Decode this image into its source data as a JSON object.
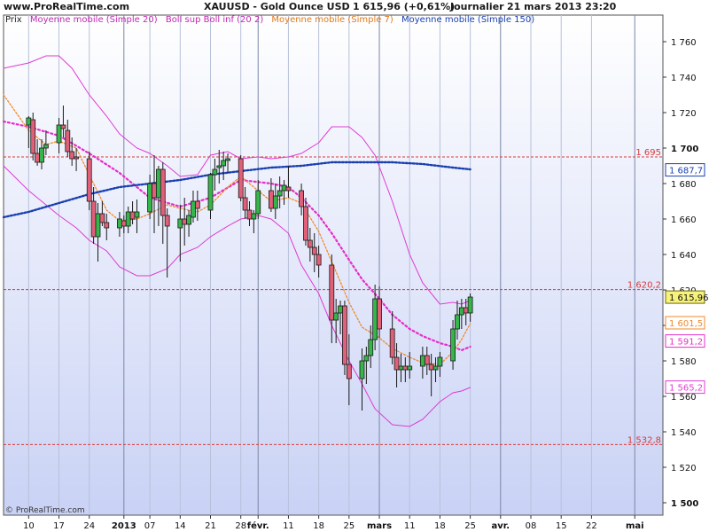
{
  "header": {
    "site": "www.ProRealTime.com",
    "instrument": "XAUUSD - Gold Ounce USD",
    "quote": "1 615,96 (+0,61%)",
    "period": "Journalier",
    "datetime": "21 mars 2013 23:20"
  },
  "legend": {
    "prix": "Prix",
    "sma20": "Moyenne mobile (Simple 20)",
    "boll": "Boll sup Boll inf (20 2)",
    "sma7": "Moyenne mobile (Simple 7)",
    "sma150": "Moyenne mobile (Simple 150)"
  },
  "footer": {
    "copyright": "© ProRealTime.com"
  },
  "colors": {
    "background_top": "#ffffff",
    "background_bottom": "#c9d2f5",
    "up_candle": "#35b54a",
    "down_candle": "#e0607a",
    "sma20": "#e62ec8",
    "bollinger": "#e03ad3",
    "sma7": "#f08a2c",
    "sma150": "#1a3fb0",
    "level_line": "#d83a3a"
  },
  "chart_data": {
    "type": "candlestick",
    "title": "XAUUSD - Gold Ounce USD",
    "y_axis": {
      "ticks": [
        "1 760",
        "1 740",
        "1 720",
        "1 700",
        "1 680",
        "1 660",
        "1 640",
        "1 620",
        "1 600",
        "1 580",
        "1 560",
        "1 540",
        "1 520",
        "1 500"
      ],
      "tick_values": [
        1760,
        1740,
        1720,
        1700,
        1680,
        1660,
        1640,
        1620,
        1600,
        1580,
        1560,
        1540,
        1520,
        1500
      ],
      "range": [
        1493,
        1775
      ],
      "position": "right"
    },
    "x_axis": {
      "labels": [
        "10",
        "17",
        "24",
        "2013",
        "07",
        "14",
        "21",
        "28",
        "févr.",
        "11",
        "18",
        "25",
        "mars",
        "11",
        "18",
        "25",
        "avr.",
        "08",
        "15",
        "22",
        "mai"
      ],
      "label_days": [
        0,
        7,
        14,
        22,
        28,
        35,
        42,
        49,
        53,
        60,
        67,
        74,
        81,
        88,
        95,
        102,
        109,
        116,
        123,
        130,
        140
      ],
      "bold_labels": [
        "2013",
        "févr.",
        "mars",
        "avr.",
        "mai"
      ],
      "range_days": [
        -5.8,
        146.5
      ]
    },
    "ohlc": [
      {
        "d": 0,
        "o": 1713,
        "h": 1718,
        "l": 1700,
        "c": 1717
      },
      {
        "d": 1,
        "o": 1716,
        "h": 1720,
        "l": 1693,
        "c": 1697
      },
      {
        "d": 2,
        "o": 1697,
        "h": 1705,
        "l": 1690,
        "c": 1692
      },
      {
        "d": 3,
        "o": 1692,
        "h": 1705,
        "l": 1688,
        "c": 1700
      },
      {
        "d": 4,
        "o": 1700,
        "h": 1710,
        "l": 1696,
        "c": 1702
      },
      {
        "d": 7,
        "o": 1703,
        "h": 1717,
        "l": 1697,
        "c": 1713
      },
      {
        "d": 8,
        "o": 1713,
        "h": 1724,
        "l": 1706,
        "c": 1711
      },
      {
        "d": 9,
        "o": 1710,
        "h": 1716,
        "l": 1695,
        "c": 1698
      },
      {
        "d": 10,
        "o": 1698,
        "h": 1706,
        "l": 1690,
        "c": 1694
      },
      {
        "d": 11,
        "o": 1695,
        "h": 1700,
        "l": 1687,
        "c": 1694
      },
      {
        "d": 14,
        "o": 1694,
        "h": 1698,
        "l": 1665,
        "c": 1670
      },
      {
        "d": 15,
        "o": 1670,
        "h": 1678,
        "l": 1646,
        "c": 1650
      },
      {
        "d": 16,
        "o": 1650,
        "h": 1669,
        "l": 1636,
        "c": 1663
      },
      {
        "d": 17,
        "o": 1663,
        "h": 1670,
        "l": 1656,
        "c": 1658
      },
      {
        "d": 18,
        "o": 1658,
        "h": 1663,
        "l": 1648,
        "c": 1655
      },
      {
        "d": 21,
        "o": 1655,
        "h": 1664,
        "l": 1650,
        "c": 1660
      },
      {
        "d": 22,
        "o": 1659,
        "h": 1662,
        "l": 1652,
        "c": 1656
      },
      {
        "d": 23,
        "o": 1656,
        "h": 1667,
        "l": 1652,
        "c": 1664
      },
      {
        "d": 24,
        "o": 1664,
        "h": 1670,
        "l": 1657,
        "c": 1660
      },
      {
        "d": 25,
        "o": 1661,
        "h": 1671,
        "l": 1652,
        "c": 1664
      },
      {
        "d": 28,
        "o": 1664,
        "h": 1685,
        "l": 1660,
        "c": 1680
      },
      {
        "d": 29,
        "o": 1680,
        "h": 1696,
        "l": 1652,
        "c": 1672
      },
      {
        "d": 30,
        "o": 1672,
        "h": 1690,
        "l": 1656,
        "c": 1688
      },
      {
        "d": 31,
        "o": 1688,
        "h": 1692,
        "l": 1646,
        "c": 1662
      },
      {
        "d": 32,
        "o": 1662,
        "h": 1666,
        "l": 1627,
        "c": 1656
      },
      {
        "d": 35,
        "o": 1655,
        "h": 1668,
        "l": 1636,
        "c": 1660
      },
      {
        "d": 36,
        "o": 1660,
        "h": 1672,
        "l": 1645,
        "c": 1657
      },
      {
        "d": 37,
        "o": 1657,
        "h": 1665,
        "l": 1650,
        "c": 1662
      },
      {
        "d": 38,
        "o": 1661,
        "h": 1676,
        "l": 1658,
        "c": 1670
      },
      {
        "d": 39,
        "o": 1670,
        "h": 1676,
        "l": 1659,
        "c": 1666
      },
      {
        "d": 42,
        "o": 1665,
        "h": 1686,
        "l": 1660,
        "c": 1685
      },
      {
        "d": 43,
        "o": 1685,
        "h": 1694,
        "l": 1676,
        "c": 1688
      },
      {
        "d": 44,
        "o": 1689,
        "h": 1699,
        "l": 1680,
        "c": 1690
      },
      {
        "d": 45,
        "o": 1690,
        "h": 1698,
        "l": 1682,
        "c": 1693
      },
      {
        "d": 46,
        "o": 1693,
        "h": 1697,
        "l": 1686,
        "c": 1694
      },
      {
        "d": 49,
        "o": 1694,
        "h": 1696,
        "l": 1670,
        "c": 1672
      },
      {
        "d": 50,
        "o": 1672,
        "h": 1678,
        "l": 1660,
        "c": 1665
      },
      {
        "d": 51,
        "o": 1665,
        "h": 1670,
        "l": 1656,
        "c": 1660
      },
      {
        "d": 52,
        "o": 1660,
        "h": 1665,
        "l": 1652,
        "c": 1663
      },
      {
        "d": 53,
        "o": 1663,
        "h": 1682,
        "l": 1660,
        "c": 1676
      },
      {
        "d": 56,
        "o": 1676,
        "h": 1683,
        "l": 1664,
        "c": 1666
      },
      {
        "d": 57,
        "o": 1666,
        "h": 1680,
        "l": 1660,
        "c": 1673
      },
      {
        "d": 58,
        "o": 1673,
        "h": 1684,
        "l": 1666,
        "c": 1676
      },
      {
        "d": 59,
        "o": 1676,
        "h": 1682,
        "l": 1668,
        "c": 1679
      },
      {
        "d": 60,
        "o": 1678,
        "h": 1690,
        "l": 1672,
        "c": 1676
      },
      {
        "d": 63,
        "o": 1676,
        "h": 1680,
        "l": 1662,
        "c": 1667
      },
      {
        "d": 64,
        "o": 1667,
        "h": 1672,
        "l": 1645,
        "c": 1648
      },
      {
        "d": 65,
        "o": 1648,
        "h": 1655,
        "l": 1636,
        "c": 1644
      },
      {
        "d": 66,
        "o": 1644,
        "h": 1652,
        "l": 1630,
        "c": 1640
      },
      {
        "d": 67,
        "o": 1640,
        "h": 1645,
        "l": 1627,
        "c": 1634
      },
      {
        "d": 70,
        "o": 1634,
        "h": 1640,
        "l": 1590,
        "c": 1603
      },
      {
        "d": 71,
        "o": 1603,
        "h": 1615,
        "l": 1590,
        "c": 1607
      },
      {
        "d": 72,
        "o": 1607,
        "h": 1614,
        "l": 1595,
        "c": 1611
      },
      {
        "d": 73,
        "o": 1611,
        "h": 1614,
        "l": 1572,
        "c": 1578
      },
      {
        "d": 74,
        "o": 1578,
        "h": 1595,
        "l": 1555,
        "c": 1570
      },
      {
        "d": 77,
        "o": 1570,
        "h": 1587,
        "l": 1552,
        "c": 1580
      },
      {
        "d": 78,
        "o": 1580,
        "h": 1588,
        "l": 1567,
        "c": 1583
      },
      {
        "d": 79,
        "o": 1583,
        "h": 1600,
        "l": 1576,
        "c": 1592
      },
      {
        "d": 80,
        "o": 1592,
        "h": 1623,
        "l": 1586,
        "c": 1615
      },
      {
        "d": 81,
        "o": 1615,
        "h": 1622,
        "l": 1593,
        "c": 1598
      },
      {
        "d": 84,
        "o": 1598,
        "h": 1608,
        "l": 1578,
        "c": 1582
      },
      {
        "d": 85,
        "o": 1582,
        "h": 1590,
        "l": 1565,
        "c": 1575
      },
      {
        "d": 86,
        "o": 1575,
        "h": 1584,
        "l": 1568,
        "c": 1577
      },
      {
        "d": 87,
        "o": 1577,
        "h": 1582,
        "l": 1568,
        "c": 1575
      },
      {
        "d": 88,
        "o": 1575,
        "h": 1585,
        "l": 1570,
        "c": 1577
      },
      {
        "d": 91,
        "o": 1577,
        "h": 1588,
        "l": 1570,
        "c": 1583
      },
      {
        "d": 92,
        "o": 1583,
        "h": 1588,
        "l": 1572,
        "c": 1578
      },
      {
        "d": 93,
        "o": 1578,
        "h": 1584,
        "l": 1560,
        "c": 1575
      },
      {
        "d": 94,
        "o": 1575,
        "h": 1582,
        "l": 1568,
        "c": 1577
      },
      {
        "d": 95,
        "o": 1577,
        "h": 1585,
        "l": 1571,
        "c": 1582
      },
      {
        "d": 98,
        "o": 1580,
        "h": 1603,
        "l": 1575,
        "c": 1598
      },
      {
        "d": 99,
        "o": 1598,
        "h": 1614,
        "l": 1592,
        "c": 1606
      },
      {
        "d": 100,
        "o": 1606,
        "h": 1615,
        "l": 1598,
        "c": 1610
      },
      {
        "d": 101,
        "o": 1610,
        "h": 1615,
        "l": 1600,
        "c": 1607
      },
      {
        "d": 102,
        "o": 1607,
        "h": 1618,
        "l": 1602,
        "c": 1616
      }
    ],
    "series": [
      {
        "name": "Moyenne mobile (Simple 20)",
        "style": "dotted",
        "points": [
          [
            -5.8,
            1715
          ],
          [
            0,
            1712
          ],
          [
            7,
            1707
          ],
          [
            14,
            1697
          ],
          [
            21,
            1686
          ],
          [
            28,
            1672
          ],
          [
            35,
            1667
          ],
          [
            42,
            1672
          ],
          [
            49,
            1682
          ],
          [
            56,
            1680
          ],
          [
            60,
            1678
          ],
          [
            63,
            1672
          ],
          [
            67,
            1662
          ],
          [
            70,
            1652
          ],
          [
            74,
            1637
          ],
          [
            77,
            1626
          ],
          [
            81,
            1615
          ],
          [
            84,
            1606
          ],
          [
            88,
            1598
          ],
          [
            91,
            1594
          ],
          [
            95,
            1590
          ],
          [
            98,
            1588
          ],
          [
            100,
            1586
          ],
          [
            102,
            1588
          ]
        ]
      },
      {
        "name": "Boll sup",
        "style": "solid",
        "points": [
          [
            -5.8,
            1745
          ],
          [
            0,
            1748
          ],
          [
            4,
            1752
          ],
          [
            7,
            1752
          ],
          [
            10,
            1745
          ],
          [
            14,
            1730
          ],
          [
            18,
            1718
          ],
          [
            21,
            1708
          ],
          [
            25,
            1700
          ],
          [
            28,
            1697
          ],
          [
            32,
            1690
          ],
          [
            35,
            1684
          ],
          [
            39,
            1685
          ],
          [
            42,
            1696
          ],
          [
            46,
            1698
          ],
          [
            49,
            1694
          ],
          [
            53,
            1695
          ],
          [
            56,
            1694
          ],
          [
            60,
            1695
          ],
          [
            63,
            1697
          ],
          [
            67,
            1703
          ],
          [
            70,
            1712
          ],
          [
            74,
            1712
          ],
          [
            77,
            1706
          ],
          [
            80,
            1696
          ],
          [
            84,
            1670
          ],
          [
            88,
            1640
          ],
          [
            91,
            1624
          ],
          [
            95,
            1612
          ],
          [
            98,
            1613
          ],
          [
            100,
            1612
          ],
          [
            102,
            1614
          ]
        ]
      },
      {
        "name": "Boll inf",
        "style": "solid",
        "points": [
          [
            -5.8,
            1690
          ],
          [
            0,
            1676
          ],
          [
            4,
            1668
          ],
          [
            7,
            1662
          ],
          [
            11,
            1655
          ],
          [
            14,
            1648
          ],
          [
            18,
            1642
          ],
          [
            21,
            1633
          ],
          [
            25,
            1628
          ],
          [
            28,
            1628
          ],
          [
            32,
            1632
          ],
          [
            35,
            1640
          ],
          [
            39,
            1644
          ],
          [
            42,
            1650
          ],
          [
            46,
            1656
          ],
          [
            49,
            1660
          ],
          [
            53,
            1662
          ],
          [
            56,
            1660
          ],
          [
            60,
            1652
          ],
          [
            63,
            1634
          ],
          [
            67,
            1618
          ],
          [
            70,
            1600
          ],
          [
            74,
            1580
          ],
          [
            77,
            1567
          ],
          [
            80,
            1553
          ],
          [
            84,
            1544
          ],
          [
            88,
            1543
          ],
          [
            91,
            1547
          ],
          [
            95,
            1557
          ],
          [
            98,
            1562
          ],
          [
            100,
            1563
          ],
          [
            102,
            1565
          ]
        ]
      },
      {
        "name": "Moyenne mobile (Simple 7)",
        "style": "dotted",
        "points": [
          [
            -5.8,
            1730
          ],
          [
            0,
            1710
          ],
          [
            4,
            1702
          ],
          [
            7,
            1704
          ],
          [
            11,
            1700
          ],
          [
            14,
            1685
          ],
          [
            18,
            1665
          ],
          [
            21,
            1659
          ],
          [
            25,
            1660
          ],
          [
            28,
            1663
          ],
          [
            32,
            1668
          ],
          [
            35,
            1666
          ],
          [
            39,
            1664
          ],
          [
            42,
            1668
          ],
          [
            46,
            1678
          ],
          [
            49,
            1684
          ],
          [
            53,
            1676
          ],
          [
            56,
            1670
          ],
          [
            60,
            1672
          ],
          [
            63,
            1669
          ],
          [
            67,
            1653
          ],
          [
            70,
            1636
          ],
          [
            74,
            1613
          ],
          [
            77,
            1599
          ],
          [
            81,
            1593
          ],
          [
            84,
            1587
          ],
          [
            88,
            1582
          ],
          [
            91,
            1579
          ],
          [
            95,
            1578
          ],
          [
            98,
            1585
          ],
          [
            100,
            1592
          ],
          [
            102,
            1601
          ]
        ]
      },
      {
        "name": "Moyenne mobile (Simple 150)",
        "style": "dotted",
        "points": [
          [
            -5.8,
            1661
          ],
          [
            0,
            1664
          ],
          [
            7,
            1669
          ],
          [
            14,
            1674
          ],
          [
            21,
            1678
          ],
          [
            28,
            1680
          ],
          [
            35,
            1682
          ],
          [
            42,
            1685
          ],
          [
            49,
            1687
          ],
          [
            56,
            1689
          ],
          [
            63,
            1690
          ],
          [
            70,
            1692
          ],
          [
            77,
            1692
          ],
          [
            84,
            1692
          ],
          [
            91,
            1691
          ],
          [
            98,
            1689
          ],
          [
            102,
            1688
          ]
        ]
      }
    ],
    "horizontal_levels": [
      {
        "value": 1695,
        "label": "1 695"
      },
      {
        "value": 1620.2,
        "label": "1 620,2"
      },
      {
        "value": 1532.8,
        "label": "1 532,8"
      }
    ],
    "price_tags": [
      {
        "value": 1687.7,
        "label": "1 687,7",
        "series": "sma150"
      },
      {
        "value": 1615.96,
        "label": "1 615,96",
        "series": "last"
      },
      {
        "value": 1601.5,
        "label": "1 601,5",
        "series": "sma7"
      },
      {
        "value": 1591.2,
        "label": "1 591,2",
        "series": "sma20"
      },
      {
        "value": 1565.2,
        "label": "1 565,2",
        "series": "bollinger"
      }
    ],
    "grid": {
      "vertical": true,
      "horizontal": false
    },
    "legend_position": "top-left"
  }
}
